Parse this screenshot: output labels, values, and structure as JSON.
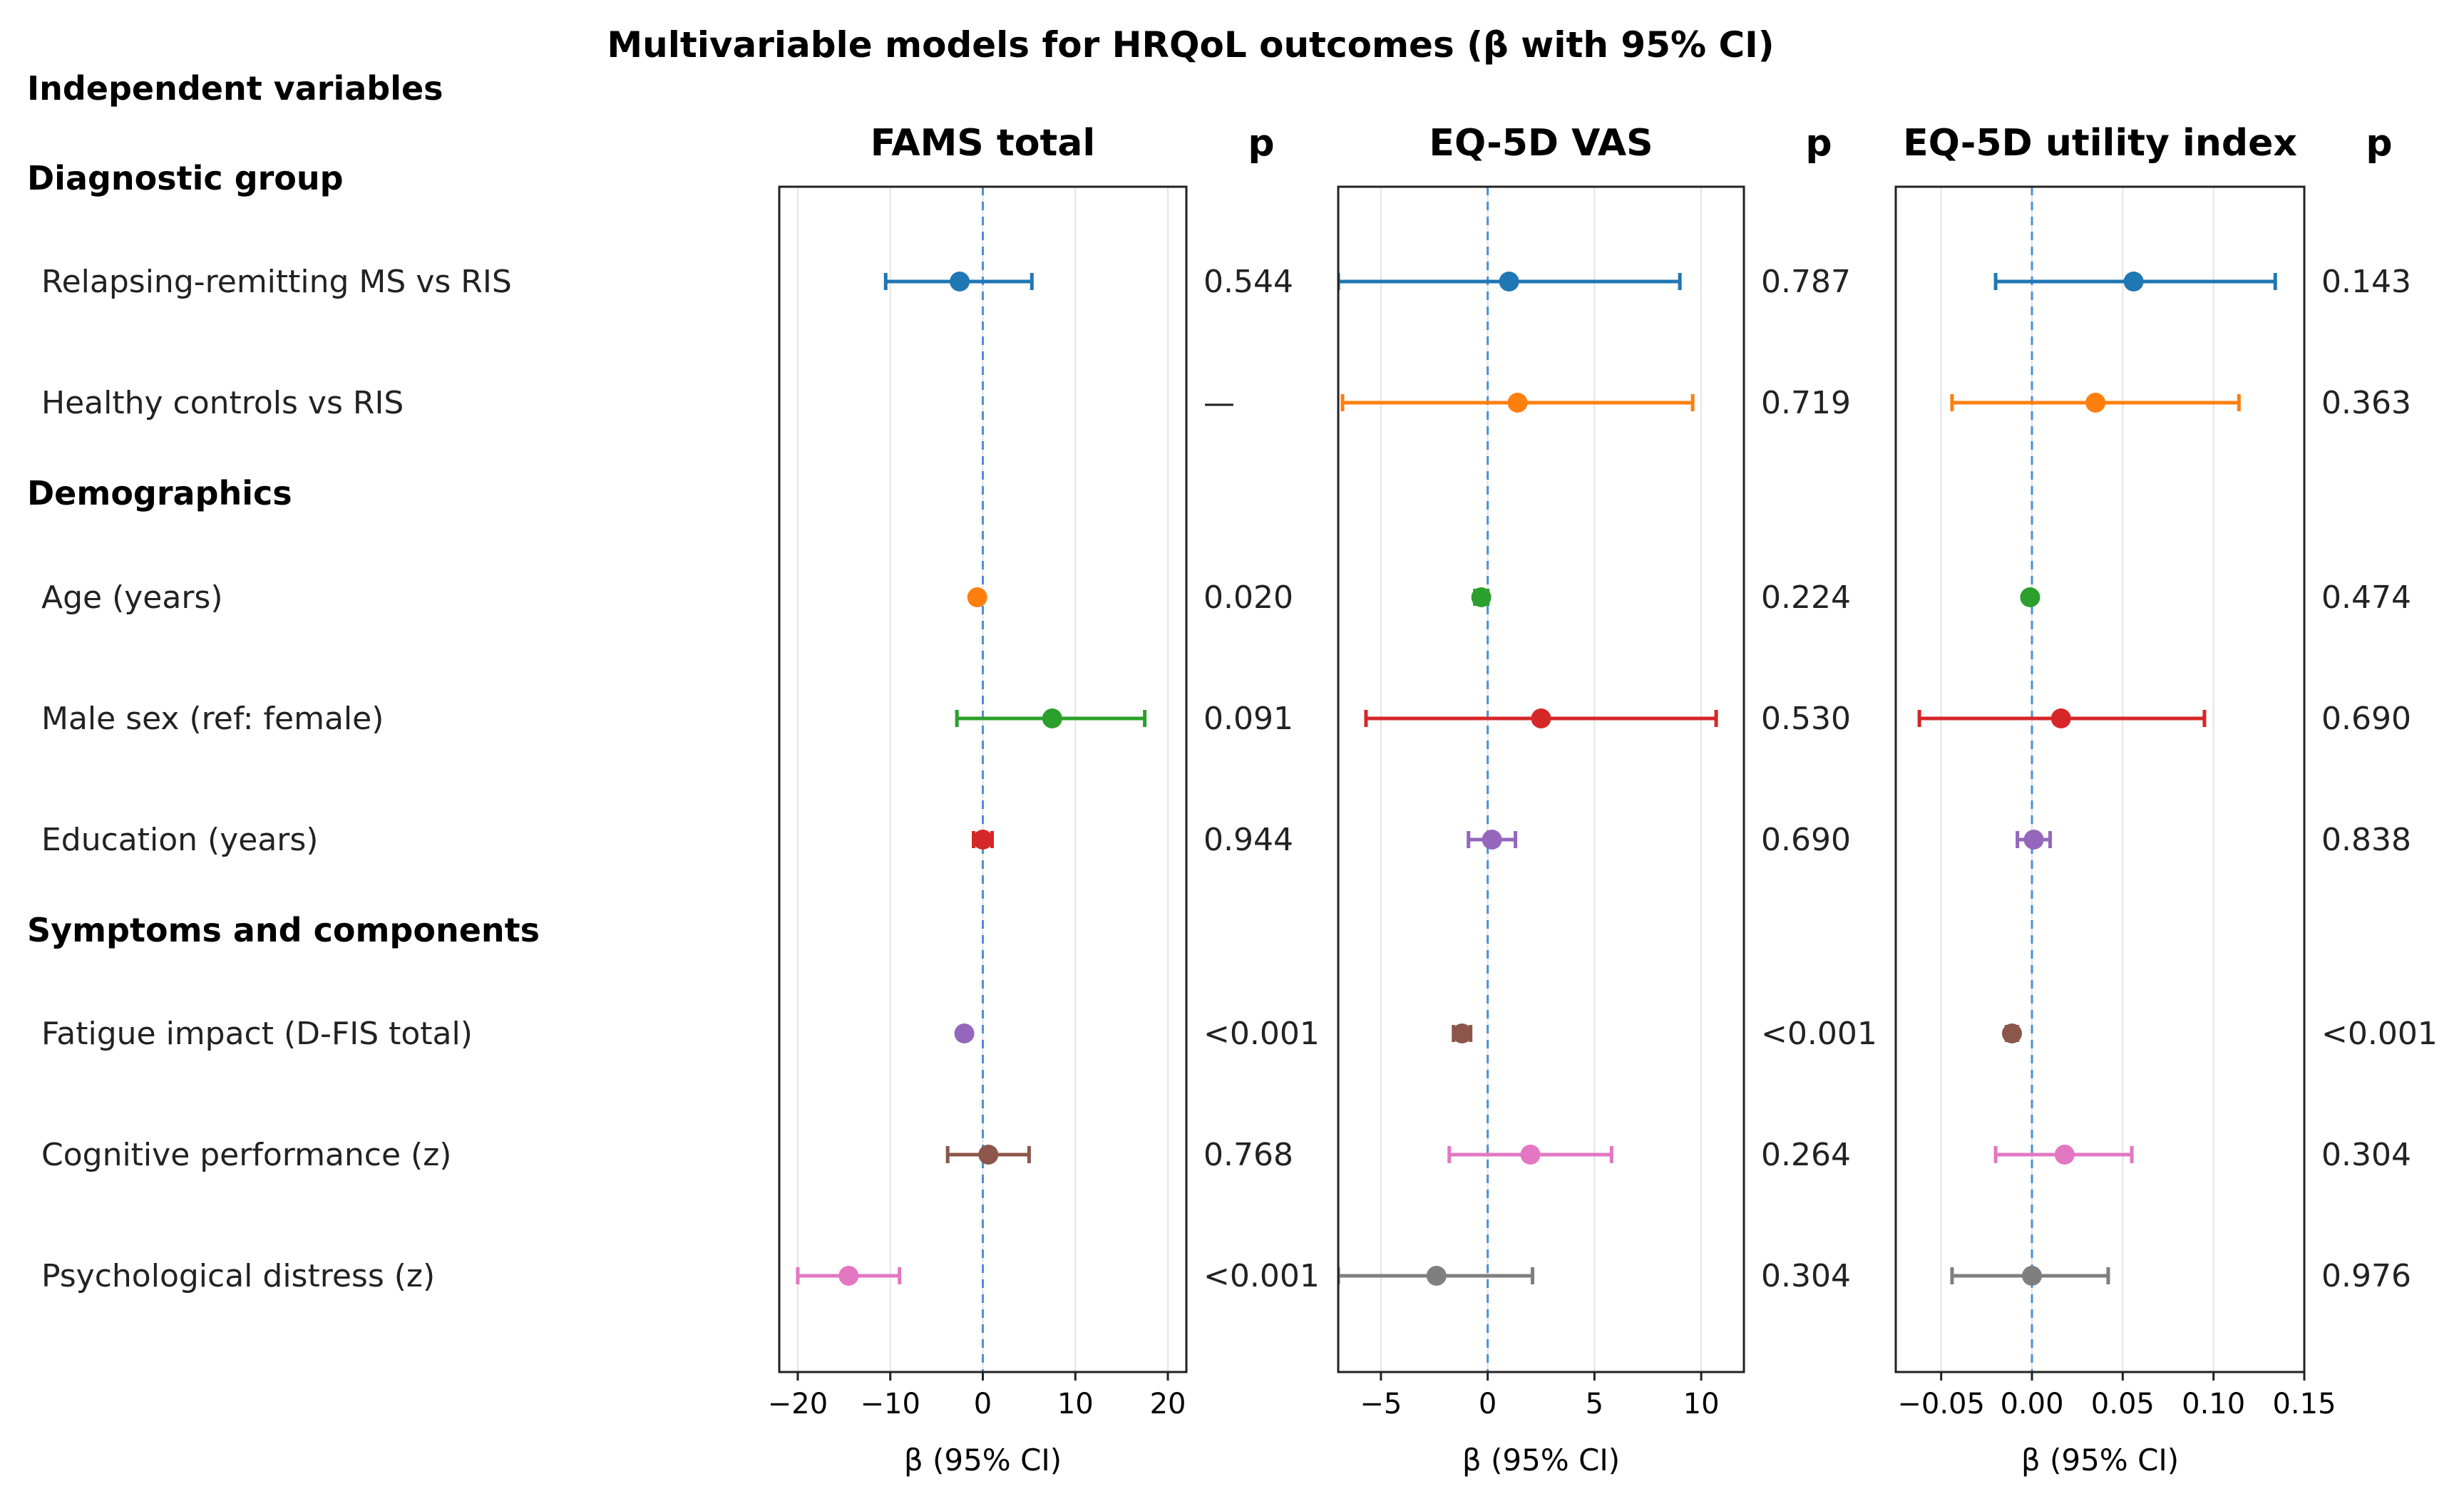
{
  "chart_data": {
    "type": "forest",
    "title": "Multivariable models for HRQoL outcomes (β with 95% CI)",
    "row_header": "Independent variables",
    "groups": [
      {
        "label": "Diagnostic group",
        "rows": [
          "Relapsing-remitting MS vs RIS",
          "Healthy controls vs RIS"
        ]
      },
      {
        "label": "Demographics",
        "rows": [
          "Age (years)",
          "Male sex (ref: female)",
          "Education (years)"
        ]
      },
      {
        "label": "Symptoms and components",
        "rows": [
          "Fatigue impact (D-FIS total)",
          "Cognitive performance (z)",
          "Psychological distress (z)"
        ]
      }
    ],
    "p_header": "p",
    "row_colors": [
      "#1f77b4",
      "#ff7f0e",
      "#2ca02c",
      "#d62728",
      "#9467bd",
      "#8c564b",
      "#e377c2",
      "#7f7f7f"
    ],
    "panels": [
      {
        "name": "FAMS total",
        "xlabel": "β (95% CI)",
        "xlim": [
          -22,
          22
        ],
        "ticks": [
          -20,
          -10,
          0,
          10,
          20
        ],
        "tick_labels": [
          "−20",
          "−10",
          "0",
          "10",
          "20"
        ],
        "colors": [
          "#1f77b4",
          null,
          "#ff7f0e",
          "#2ca02c",
          "#d62728",
          "#9467bd",
          "#8c564b",
          "#e377c2"
        ],
        "estimates": [
          -2.5,
          null,
          -0.6,
          7.5,
          0.0,
          -2.0,
          0.6,
          -14.5
        ],
        "lower": [
          -10.5,
          null,
          -1.0,
          -2.8,
          -1.0,
          -2.4,
          -3.8,
          -20.0
        ],
        "upper": [
          5.3,
          null,
          -0.2,
          17.5,
          1.0,
          -1.6,
          5.0,
          -9.0
        ],
        "p": [
          "0.544",
          "—",
          "0.020",
          "0.091",
          "0.944",
          "<0.001",
          "0.768",
          "<0.001"
        ]
      },
      {
        "name": "EQ-5D VAS",
        "xlabel": "β (95% CI)",
        "xlim": [
          -7,
          12
        ],
        "ticks": [
          -5,
          0,
          5,
          10
        ],
        "tick_labels": [
          "−5",
          "0",
          "5",
          "10"
        ],
        "colors": [
          "#1f77b4",
          "#ff7f0e",
          "#2ca02c",
          "#d62728",
          "#9467bd",
          "#8c564b",
          "#e377c2",
          "#7f7f7f"
        ],
        "estimates": [
          1.0,
          1.4,
          -0.3,
          2.5,
          0.2,
          -1.2,
          2.0,
          -2.4
        ],
        "lower": [
          -7.0,
          -6.8,
          -0.6,
          -5.7,
          -0.9,
          -1.6,
          -1.8,
          -7.0
        ],
        "upper": [
          9.0,
          9.6,
          0.0,
          10.7,
          1.3,
          -0.8,
          5.8,
          2.1
        ],
        "p": [
          "0.787",
          "0.719",
          "0.224",
          "0.530",
          "0.690",
          "<0.001",
          "0.264",
          "0.304"
        ]
      },
      {
        "name": "EQ-5D utility index",
        "xlabel": "β (95% CI)",
        "xlim": [
          -0.075,
          0.15
        ],
        "ticks": [
          -0.05,
          0.0,
          0.05,
          0.1,
          0.15
        ],
        "tick_labels": [
          "−0.05",
          "0.00",
          "0.05",
          "0.10",
          "0.15"
        ],
        "colors": [
          "#1f77b4",
          "#ff7f0e",
          "#2ca02c",
          "#d62728",
          "#9467bd",
          "#8c564b",
          "#e377c2",
          "#7f7f7f"
        ],
        "estimates": [
          0.056,
          0.035,
          -0.001,
          0.016,
          0.001,
          -0.011,
          0.018,
          0.0
        ],
        "lower": [
          -0.02,
          -0.044,
          -0.003,
          -0.062,
          -0.008,
          -0.014,
          -0.02,
          -0.044
        ],
        "upper": [
          0.134,
          0.114,
          0.001,
          0.095,
          0.01,
          -0.008,
          0.055,
          0.042
        ],
        "p": [
          "0.143",
          "0.363",
          "0.474",
          "0.690",
          "0.838",
          "<0.001",
          "0.304",
          "0.976"
        ]
      }
    ]
  }
}
